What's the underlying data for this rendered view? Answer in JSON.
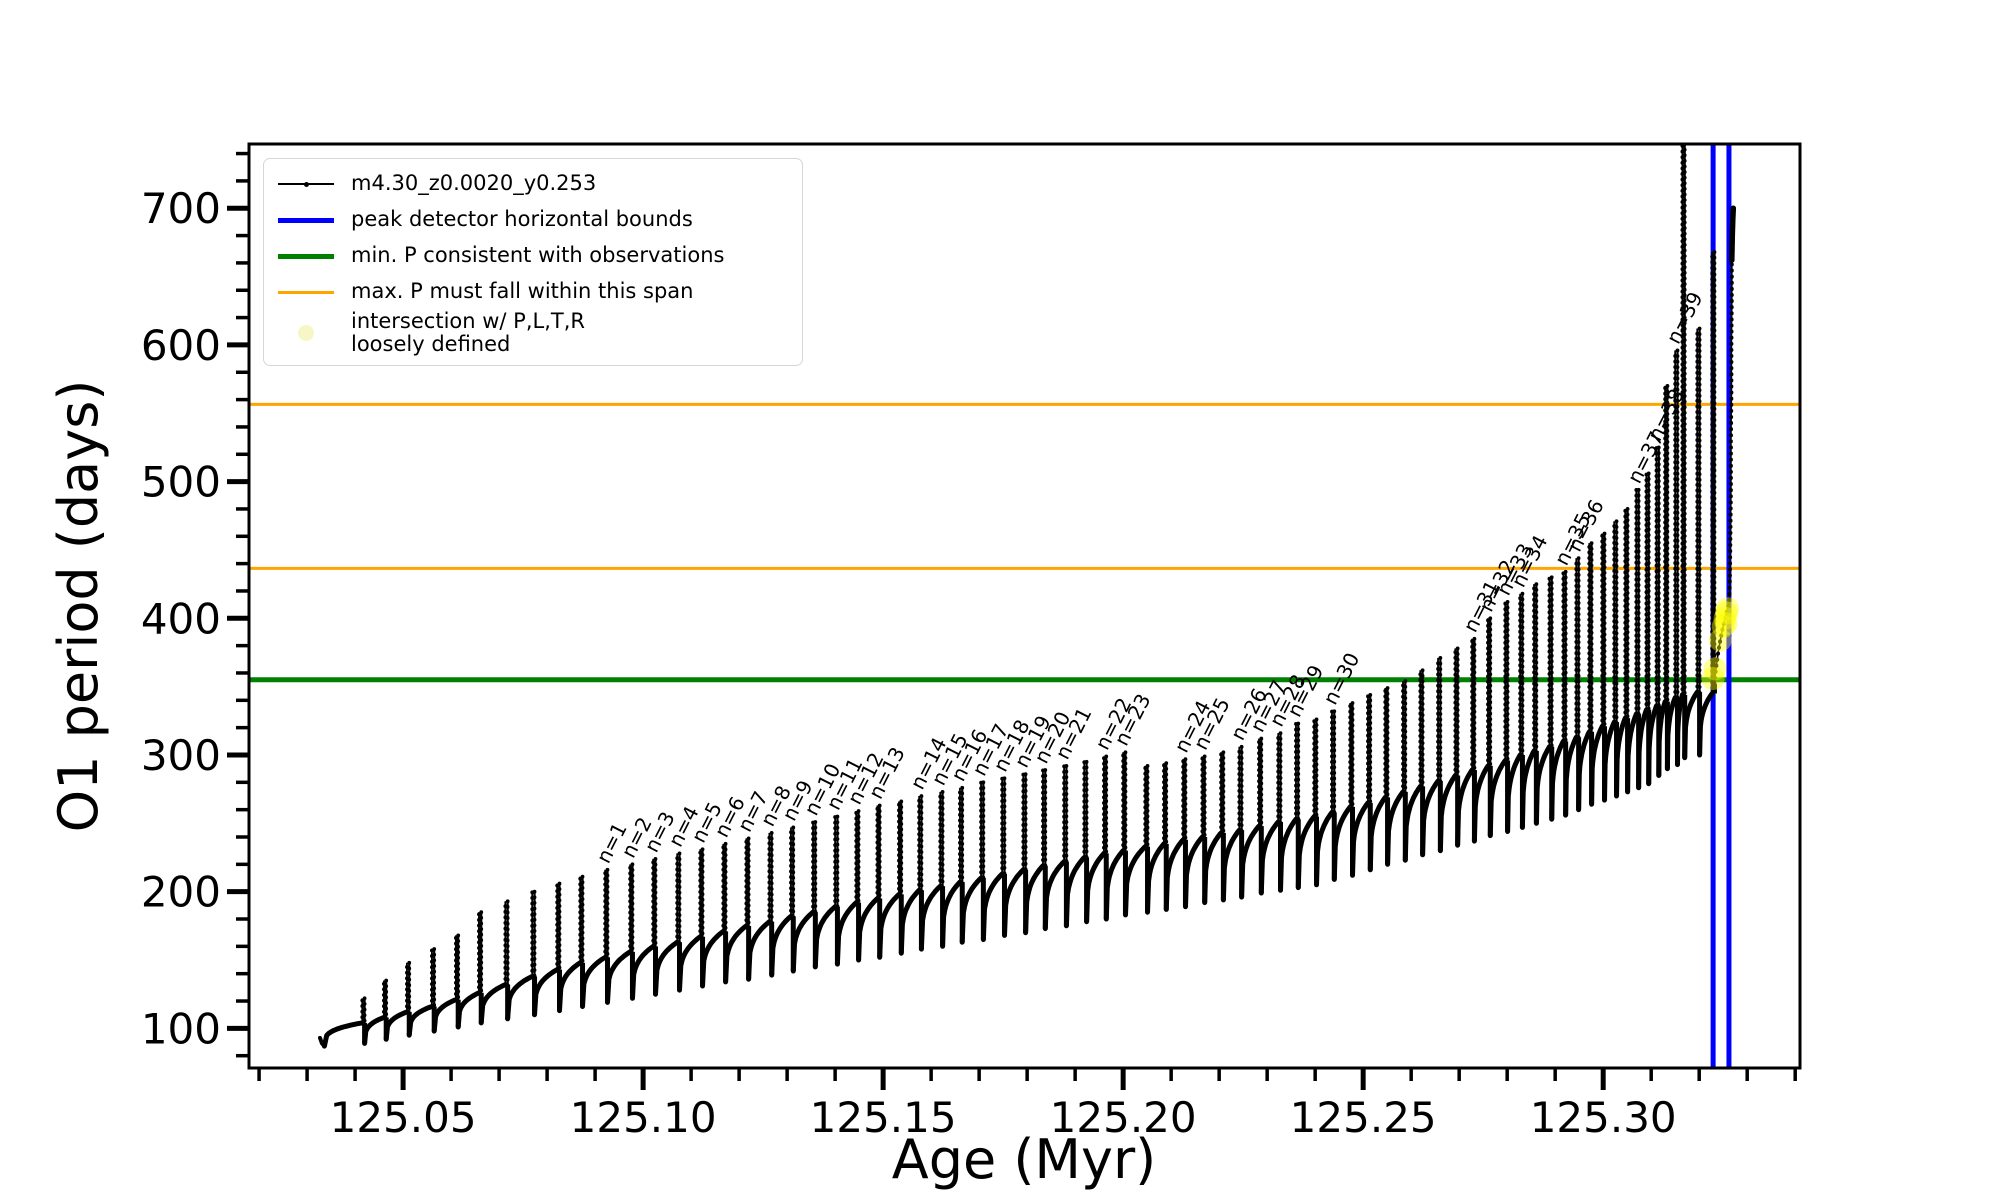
{
  "colors": {
    "series": "#000000",
    "peak_bounds": "#0000ff",
    "min_p": "#008000",
    "max_p": "#ffa500",
    "intersection": "#ffff00",
    "frame": "#000000"
  },
  "legend": {
    "items": [
      {
        "label": "m4.30_z0.0020_y0.253",
        "marker": "black-line-dot"
      },
      {
        "label": "peak detector horizontal bounds",
        "marker": "blue-line"
      },
      {
        "label": "min. P consistent with observations",
        "marker": "green-line"
      },
      {
        "label": "max. P must fall within this span",
        "marker": "orange-line"
      },
      {
        "label": "intersection w/ P,L,T,R",
        "label2": "loosely defined",
        "marker": "yellow-dot"
      }
    ]
  },
  "chart_data": {
    "type": "line",
    "title": "",
    "xlabel": "Age (Myr)",
    "ylabel": "O1 period (days)",
    "xlim": [
      125.0179,
      125.341
    ],
    "ylim": [
      71,
      747
    ],
    "grid": false,
    "legend_position": "upper left",
    "xticks": {
      "major": [
        125.05,
        125.1,
        125.15,
        125.2,
        125.25,
        125.3
      ],
      "labels": [
        "125.05",
        "125.10",
        "125.15",
        "125.20",
        "125.25",
        "125.30"
      ],
      "minor_step": 0.01
    },
    "yticks": {
      "major": [
        100,
        200,
        300,
        400,
        500,
        600,
        700
      ],
      "labels": [
        "100",
        "200",
        "300",
        "400",
        "500",
        "600",
        "700"
      ],
      "minor_step": 20
    },
    "hlines": [
      {
        "name": "min_P_consistent_with_observations",
        "y": 355,
        "color": "#008000",
        "width": 5
      },
      {
        "name": "max_P_span_lower",
        "y": 436.5,
        "color": "#ffa500",
        "width": 3
      },
      {
        "name": "max_P_span_upper",
        "y": 556.5,
        "color": "#ffa500",
        "width": 3
      }
    ],
    "vlines": [
      {
        "name": "peak_detector_bound_left",
        "x": 125.3229,
        "color": "#0000ff",
        "width": 5
      },
      {
        "name": "peak_detector_bound_right",
        "x": 125.3262,
        "color": "#0000ff",
        "width": 5
      }
    ],
    "series_label": "m4.30_z0.0020_y0.253",
    "lead_points": [
      [
        125.0327,
        93
      ],
      [
        125.0331,
        89
      ],
      [
        125.0336,
        87
      ]
    ],
    "pulses_note": "each pulse: [age_Myr, cycle_min_days, shoulder_days, spike_top_days, label]",
    "pulses": [
      [
        125.0415,
        86,
        104,
        122,
        ""
      ],
      [
        125.046,
        89,
        108,
        135,
        ""
      ],
      [
        125.0508,
        92,
        112,
        148,
        ""
      ],
      [
        125.056,
        95,
        116,
        158,
        ""
      ],
      [
        125.061,
        98,
        121,
        168,
        ""
      ],
      [
        125.0658,
        101,
        126,
        185,
        ""
      ],
      [
        125.0713,
        104,
        132,
        193,
        ""
      ],
      [
        125.0769,
        107,
        138,
        200,
        ""
      ],
      [
        125.0821,
        110,
        143,
        206,
        ""
      ],
      [
        125.0869,
        113,
        148,
        211,
        ""
      ],
      [
        125.0921,
        116,
        152,
        216,
        "n=1"
      ],
      [
        125.0973,
        119,
        156,
        220,
        "n=2"
      ],
      [
        125.1021,
        122,
        160,
        224,
        "n=3"
      ],
      [
        125.1071,
        125,
        163,
        228,
        "n=4"
      ],
      [
        125.1119,
        128,
        167,
        231,
        "n=5"
      ],
      [
        125.1167,
        131,
        171,
        235,
        "n=6"
      ],
      [
        125.1215,
        134,
        175,
        239,
        "n=7"
      ],
      [
        125.1263,
        136,
        178,
        243,
        "n=8"
      ],
      [
        125.1308,
        139,
        182,
        247,
        "n=9"
      ],
      [
        125.1354,
        142,
        185,
        251,
        "n=10"
      ],
      [
        125.14,
        145,
        189,
        255,
        "n=11"
      ],
      [
        125.1444,
        147,
        192,
        259,
        "n=12"
      ],
      [
        125.1488,
        150,
        195,
        263,
        "n=13"
      ],
      [
        125.1533,
        152,
        198,
        266,
        ""
      ],
      [
        125.1575,
        155,
        201,
        270,
        "n=14"
      ],
      [
        125.1619,
        158,
        204,
        273,
        "n=15"
      ],
      [
        125.166,
        160,
        207,
        276,
        "n=16"
      ],
      [
        125.1704,
        163,
        210,
        280,
        "n=17"
      ],
      [
        125.1748,
        165,
        213,
        283,
        "n=18"
      ],
      [
        125.1792,
        168,
        216,
        286,
        "n=19"
      ],
      [
        125.1833,
        170,
        219,
        289,
        "n=20"
      ],
      [
        125.1877,
        173,
        222,
        292,
        "n=21"
      ],
      [
        125.1919,
        175,
        225,
        295,
        ""
      ],
      [
        125.196,
        178,
        228,
        299,
        "n=22"
      ],
      [
        125.2,
        180,
        230,
        302,
        "n=23"
      ],
      [
        125.2046,
        183,
        233,
        292,
        ""
      ],
      [
        125.2085,
        185,
        235,
        294,
        ""
      ],
      [
        125.2125,
        187,
        238,
        297,
        "n=24"
      ],
      [
        125.2165,
        189,
        240,
        299,
        "n=25"
      ],
      [
        125.2204,
        192,
        243,
        302,
        ""
      ],
      [
        125.2242,
        194,
        245,
        306,
        "n=26"
      ],
      [
        125.2283,
        196,
        248,
        312,
        "n=27"
      ],
      [
        125.2323,
        199,
        251,
        316,
        "n=28"
      ],
      [
        125.236,
        201,
        253,
        323,
        "n=29"
      ],
      [
        125.2398,
        203,
        255,
        326,
        ""
      ],
      [
        125.2435,
        205,
        258,
        332,
        "n=30"
      ],
      [
        125.2473,
        209,
        262,
        338,
        ""
      ],
      [
        125.251,
        212,
        265,
        344,
        ""
      ],
      [
        125.2546,
        216,
        269,
        349,
        ""
      ],
      [
        125.2583,
        220,
        273,
        354,
        ""
      ],
      [
        125.2619,
        223,
        277,
        362,
        ""
      ],
      [
        125.2656,
        227,
        281,
        371,
        ""
      ],
      [
        125.2692,
        230,
        285,
        378,
        ""
      ],
      [
        125.2727,
        234,
        289,
        385,
        "n=31"
      ],
      [
        125.276,
        237,
        292,
        400,
        "n=32"
      ],
      [
        125.2796,
        241,
        296,
        412,
        "n=33"
      ],
      [
        125.2827,
        244,
        300,
        418,
        "n=34"
      ],
      [
        125.2856,
        247,
        303,
        425,
        ""
      ],
      [
        125.2888,
        250,
        306,
        430,
        ""
      ],
      [
        125.2917,
        253,
        310,
        434,
        "n=35"
      ],
      [
        125.2944,
        256,
        313,
        444,
        "n=36"
      ],
      [
        125.2971,
        260,
        317,
        455,
        ""
      ],
      [
        125.2998,
        264,
        321,
        462,
        ""
      ],
      [
        125.3023,
        267,
        324,
        471,
        ""
      ],
      [
        125.3046,
        270,
        327,
        480,
        ""
      ],
      [
        125.3069,
        273,
        330,
        494,
        "n=37"
      ],
      [
        125.309,
        276,
        333,
        506,
        ""
      ],
      [
        125.3111,
        279,
        336,
        525,
        "n=38"
      ],
      [
        125.3129,
        285,
        339,
        570,
        ""
      ],
      [
        125.315,
        290,
        342,
        596,
        "n=39"
      ],
      [
        125.3165,
        293,
        344,
        747,
        ""
      ],
      [
        125.3196,
        298,
        346,
        612,
        ""
      ],
      [
        125.3227,
        300,
        345,
        668,
        ""
      ]
    ],
    "tail_points": [
      [
        125.3231,
        352
      ],
      [
        125.3236,
        366
      ],
      [
        125.324,
        376
      ],
      [
        125.3244,
        384
      ],
      [
        125.3248,
        391
      ],
      [
        125.3252,
        397
      ],
      [
        125.3256,
        403
      ],
      [
        125.326,
        408
      ],
      [
        125.3263,
        412
      ],
      [
        125.3264,
        430
      ],
      [
        125.3265,
        460
      ],
      [
        125.3266,
        495
      ],
      [
        125.3266,
        530
      ],
      [
        125.3267,
        565
      ],
      [
        125.3267,
        600
      ],
      [
        125.3268,
        635
      ],
      [
        125.3268,
        662
      ],
      [
        125.3269,
        680
      ],
      [
        125.327,
        692
      ],
      [
        125.3271,
        700
      ]
    ],
    "intersection_points": [
      [
        125.3229,
        356
      ],
      [
        125.3233,
        363
      ],
      [
        125.3244,
        384
      ],
      [
        125.325,
        394
      ],
      [
        125.3254,
        400
      ],
      [
        125.3257,
        404
      ],
      [
        125.3259,
        407
      ],
      [
        125.3256,
        396
      ]
    ]
  }
}
